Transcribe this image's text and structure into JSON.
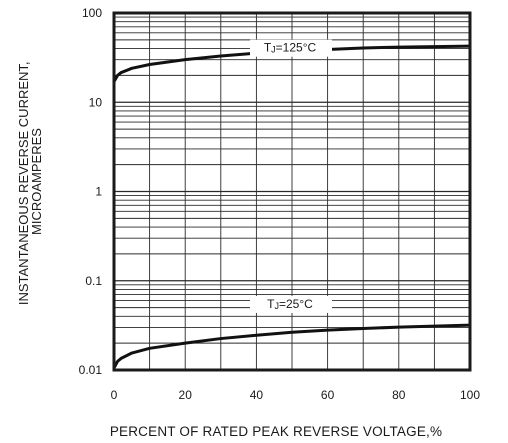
{
  "chart_data": {
    "type": "line",
    "xlabel": "PERCENT OF RATED PEAK REVERSE VOLTAGE,%",
    "ylabel": [
      "INSTANTANEOUS REVERSE CURRENT,",
      "MICROAMPERES"
    ],
    "x_ticks": [
      "0",
      "20",
      "40",
      "60",
      "80",
      "100"
    ],
    "y_ticks": [
      "100",
      "10",
      "1",
      "0.1",
      "0.01"
    ],
    "xlim": [
      0,
      100
    ],
    "ylim": [
      0.01,
      100
    ],
    "y_scale": "log",
    "grid": true,
    "series": [
      {
        "name": "TJ=125°C",
        "label_sub": "J",
        "label_rest": "=125°C",
        "x": [
          0,
          1,
          2,
          5,
          10,
          20,
          30,
          40,
          50,
          60,
          70,
          80,
          90,
          100
        ],
        "y": [
          17,
          20,
          21.5,
          24,
          26.5,
          30,
          33,
          35.5,
          37.5,
          39,
          40.5,
          41.5,
          42,
          42.5
        ]
      },
      {
        "name": "TJ=25°C",
        "label_sub": "J",
        "label_rest": "=25°C",
        "x": [
          0,
          1,
          2,
          5,
          10,
          20,
          30,
          40,
          50,
          60,
          70,
          80,
          90,
          100
        ],
        "y": [
          0.0105,
          0.0125,
          0.0135,
          0.0155,
          0.0175,
          0.02,
          0.0225,
          0.0245,
          0.0265,
          0.028,
          0.0292,
          0.0302,
          0.031,
          0.0318
        ]
      }
    ]
  }
}
